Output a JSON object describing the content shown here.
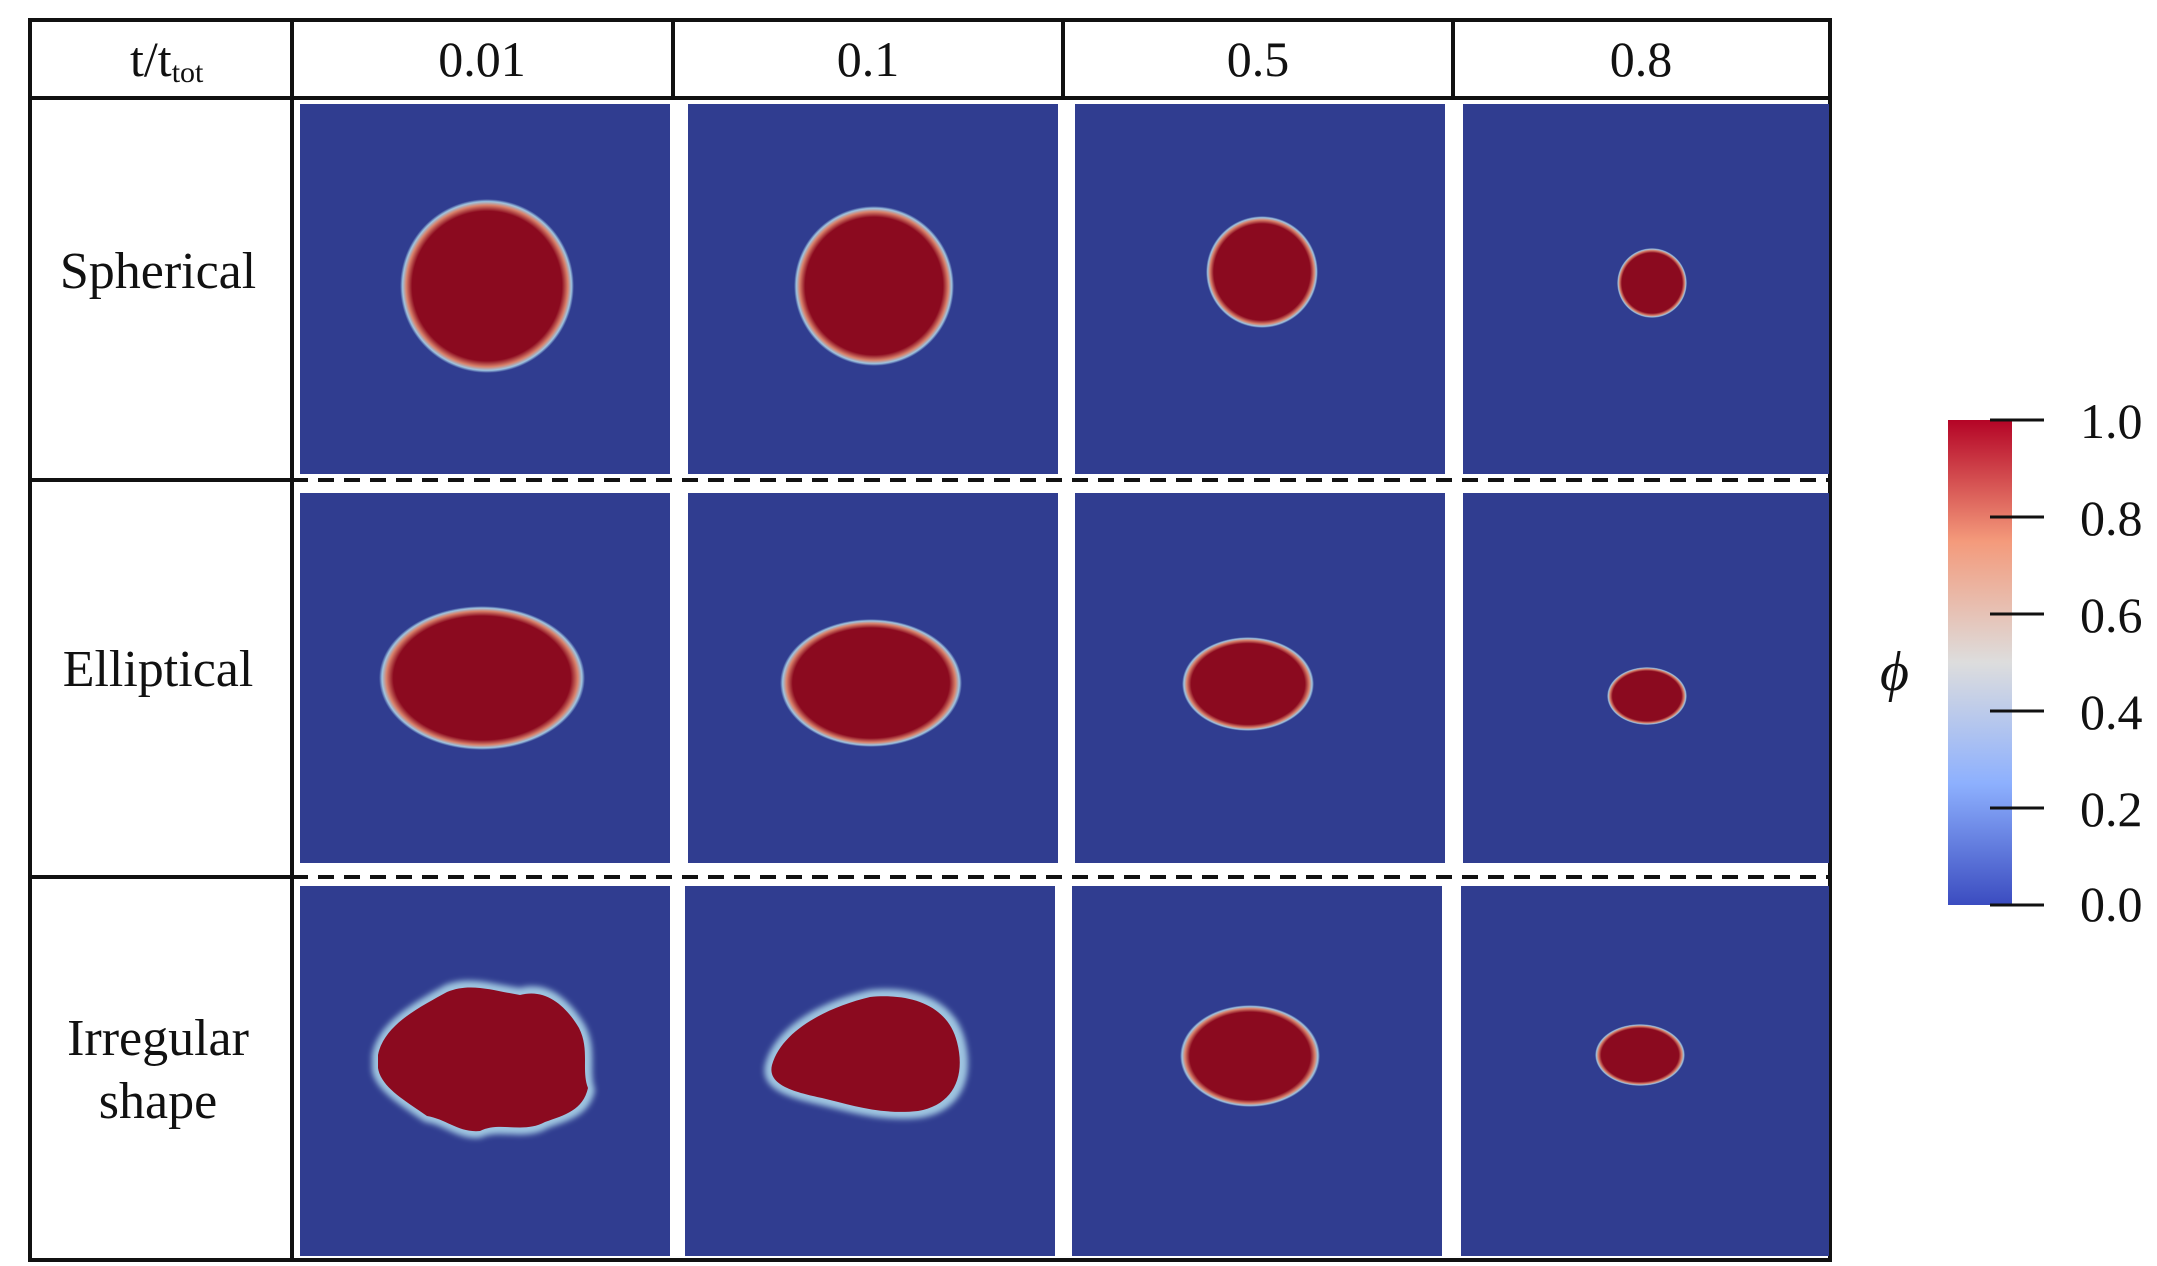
{
  "table": {
    "header_label_main": "t/t",
    "header_label_sub": "tot",
    "time_fractions": [
      "0.01",
      "0.1",
      "0.5",
      "0.8"
    ],
    "row_labels": [
      [
        "Spherical"
      ],
      [
        "Elliptical"
      ],
      [
        "Irregular",
        "shape"
      ]
    ]
  },
  "colorbar": {
    "symbol": "ϕ",
    "ticks": [
      "1.0",
      "0.8",
      "0.6",
      "0.4",
      "0.2",
      "0.0"
    ],
    "colors": {
      "low": "#3b4cc0",
      "mid": "#dddddd",
      "high": "#b40426"
    }
  },
  "colors": {
    "background_blue": "#303d90",
    "droplet_red": "#8b0a1f"
  },
  "panels": {
    "spherical": [
      {
        "shape": "circle",
        "relative_size": 0.47
      },
      {
        "shape": "circle",
        "relative_size": 0.43
      },
      {
        "shape": "circle",
        "relative_size": 0.3
      },
      {
        "shape": "circle",
        "relative_size": 0.19
      }
    ],
    "elliptical": [
      {
        "shape": "ellipse",
        "relative_width": 0.55,
        "relative_height": 0.38
      },
      {
        "shape": "ellipse",
        "relative_width": 0.49,
        "relative_height": 0.34
      },
      {
        "shape": "ellipse",
        "relative_width": 0.35,
        "relative_height": 0.25
      },
      {
        "shape": "ellipse",
        "relative_width": 0.21,
        "relative_height": 0.15
      }
    ],
    "irregular": [
      {
        "shape": "irregular",
        "relative_width": 0.6
      },
      {
        "shape": "irregular",
        "relative_width": 0.55
      },
      {
        "shape": "ellipse",
        "relative_width": 0.37,
        "relative_height": 0.27
      },
      {
        "shape": "ellipse",
        "relative_width": 0.24,
        "relative_height": 0.16
      }
    ]
  }
}
